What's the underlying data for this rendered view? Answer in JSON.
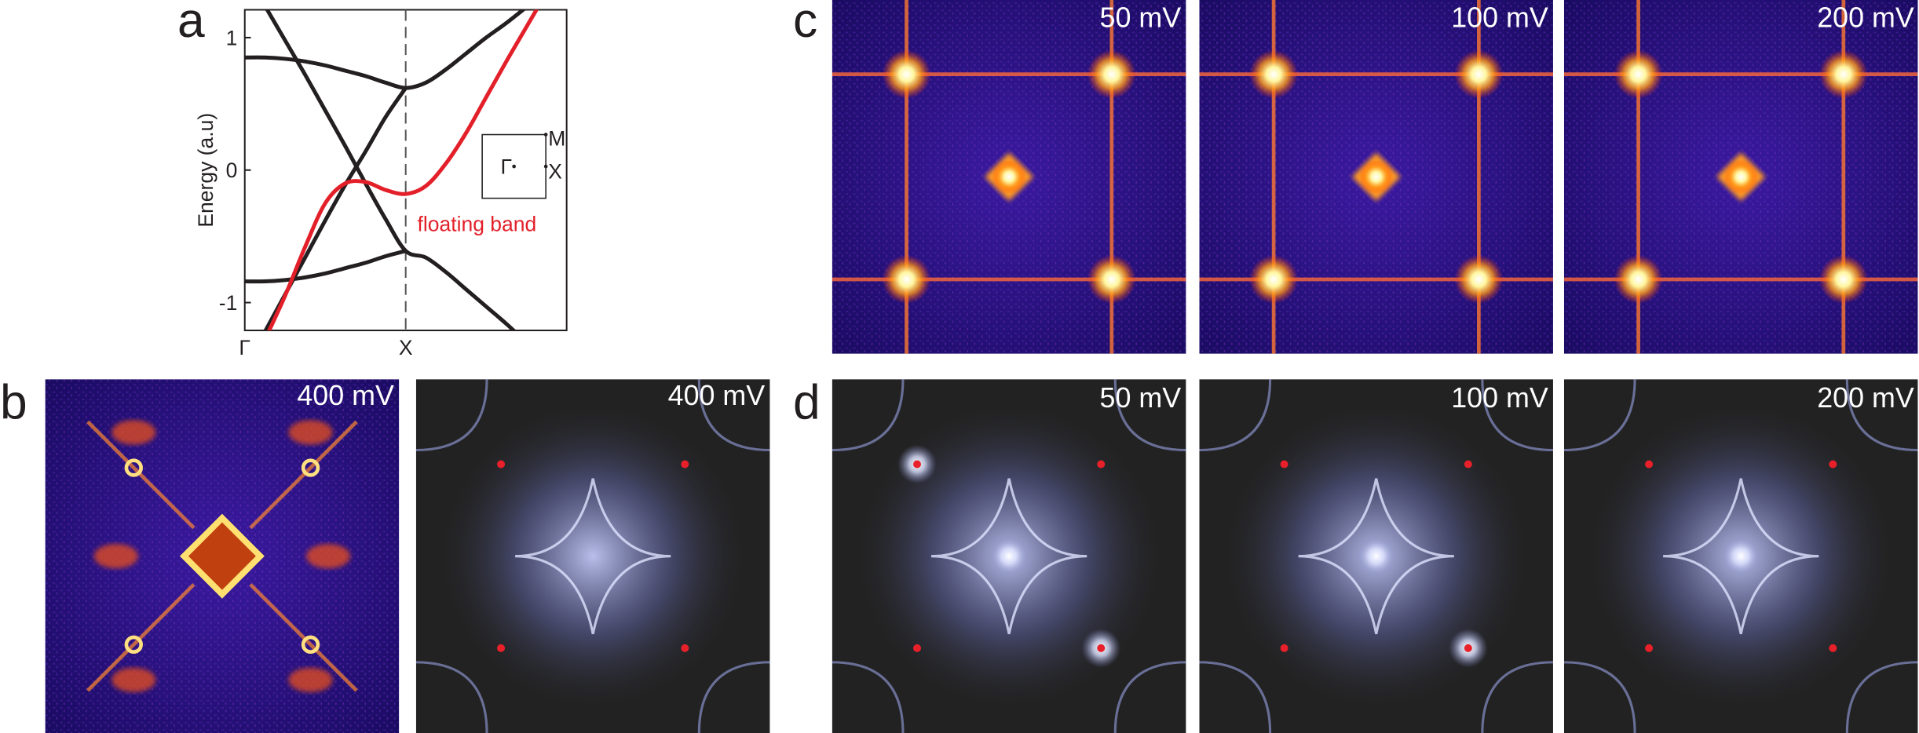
{
  "chart_data": {
    "type": "line",
    "ylabel": "Energy (a.u)",
    "xlim": [
      0,
      2
    ],
    "ylim": [
      -1.21,
      1.21
    ],
    "xticks": [
      {
        "value": 0,
        "label": "Γ"
      },
      {
        "value": 1,
        "label": "X"
      }
    ],
    "yticks": [
      -1,
      0,
      1
    ],
    "x": [
      0,
      0.125,
      0.25,
      0.375,
      0.5,
      0.625,
      0.75,
      0.875,
      1,
      1.125,
      1.25,
      1.375,
      1.5,
      1.625,
      1.75,
      1.875
    ],
    "series": [
      {
        "color": "#231f20",
        "values": [
          0.85,
          0.85,
          0.84,
          0.82,
          0.79,
          0.75,
          0.71,
          0.66,
          0.62,
          0.66,
          0.76,
          0.88,
          1.0,
          1.11,
          1.23,
          null
        ]
      },
      {
        "color": "#231f20",
        "values": [
          1.5,
          1.24,
          0.98,
          0.72,
          0.45,
          0.18,
          -0.1,
          -0.37,
          -0.61,
          -0.66,
          -0.77,
          -0.9,
          -1.03,
          -1.16,
          -1.3,
          null
        ]
      },
      {
        "color": "#231f20",
        "values": [
          -1.5,
          -1.22,
          -0.94,
          -0.66,
          -0.38,
          -0.11,
          0.14,
          0.4,
          0.62,
          null,
          null,
          null,
          null,
          null,
          null,
          null
        ]
      },
      {
        "color": "#231f20",
        "values": [
          -0.84,
          -0.84,
          -0.83,
          -0.81,
          -0.78,
          -0.74,
          -0.7,
          -0.65,
          -0.61,
          null,
          null,
          null,
          null,
          null,
          null,
          null
        ]
      },
      {
        "color": "#e3202a",
        "values": [
          null,
          -1.28,
          -0.95,
          -0.58,
          -0.25,
          -0.1,
          -0.09,
          -0.15,
          -0.18,
          -0.12,
          0.05,
          0.28,
          0.55,
          0.82,
          1.08,
          1.34
        ]
      }
    ],
    "annotation": "floating band",
    "inset_labels": [
      "Γ",
      "M",
      "X"
    ]
  },
  "panel_letters": [
    "a",
    "b",
    "c",
    "d"
  ],
  "panel_b": [
    "400 mV",
    "400 mV"
  ],
  "panel_c": [
    "50 mV",
    "100 mV",
    "200 mV"
  ],
  "panel_d": [
    "50 mV",
    "100 mV",
    "200 mV"
  ]
}
